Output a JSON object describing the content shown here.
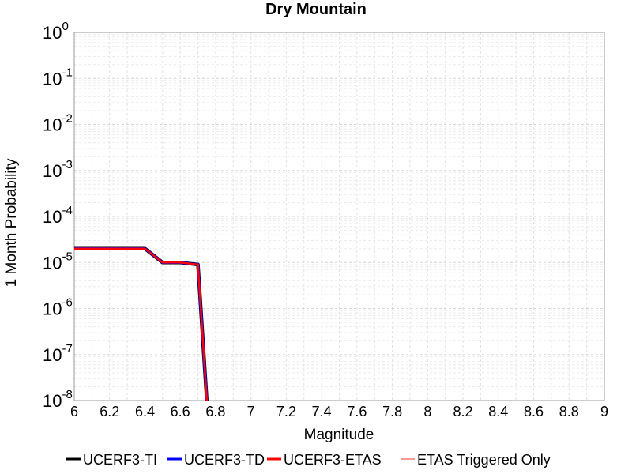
{
  "chart_data": {
    "type": "line",
    "title": "Dry Mountain",
    "xlabel": "Magnitude",
    "ylabel": "1 Month Probability",
    "xlim": [
      6,
      9
    ],
    "ylim": [
      1e-08,
      1
    ],
    "yscale": "log",
    "grid": true,
    "legend_position": "bottom",
    "x_ticks": [
      "6",
      "6.2",
      "6.4",
      "6.6",
      "6.8",
      "7",
      "7.2",
      "7.4",
      "7.6",
      "7.8",
      "8",
      "8.2",
      "8.4",
      "8.6",
      "8.8",
      "9"
    ],
    "y_ticks": [
      {
        "base": "10",
        "exp": "0",
        "value": 1
      },
      {
        "base": "10",
        "exp": "-1",
        "value": 0.1
      },
      {
        "base": "10",
        "exp": "-2",
        "value": 0.01
      },
      {
        "base": "10",
        "exp": "-3",
        "value": 0.001
      },
      {
        "base": "10",
        "exp": "-4",
        "value": 0.0001
      },
      {
        "base": "10",
        "exp": "-5",
        "value": 1e-05
      },
      {
        "base": "10",
        "exp": "-6",
        "value": 1e-06
      },
      {
        "base": "10",
        "exp": "-7",
        "value": 1e-07
      },
      {
        "base": "10",
        "exp": "-8",
        "value": 1e-08
      }
    ],
    "series": [
      {
        "name": "UCERF3-TI",
        "color": "#000000",
        "x": [
          6.0,
          6.1,
          6.2,
          6.3,
          6.4,
          6.5,
          6.6,
          6.7,
          6.75
        ],
        "y": [
          2e-05,
          2e-05,
          2e-05,
          2e-05,
          2e-05,
          1e-05,
          1e-05,
          9e-06,
          1e-08
        ]
      },
      {
        "name": "UCERF3-TD",
        "color": "#0000ff",
        "x": [
          6.0,
          6.1,
          6.2,
          6.3,
          6.4,
          6.5,
          6.6,
          6.7,
          6.75
        ],
        "y": [
          2e-05,
          2e-05,
          2e-05,
          2e-05,
          2e-05,
          1e-05,
          1e-05,
          9e-06,
          1e-08
        ]
      },
      {
        "name": "UCERF3-ETAS",
        "color": "#ff0000",
        "x": [
          6.0,
          6.1,
          6.2,
          6.3,
          6.4,
          6.5,
          6.6,
          6.7,
          6.75
        ],
        "y": [
          2e-05,
          2e-05,
          2e-05,
          2e-05,
          2e-05,
          1e-05,
          1e-05,
          9e-06,
          1e-08
        ]
      },
      {
        "name": "ETAS Triggered Only",
        "color": "#ff9999",
        "x": [],
        "y": []
      }
    ]
  }
}
